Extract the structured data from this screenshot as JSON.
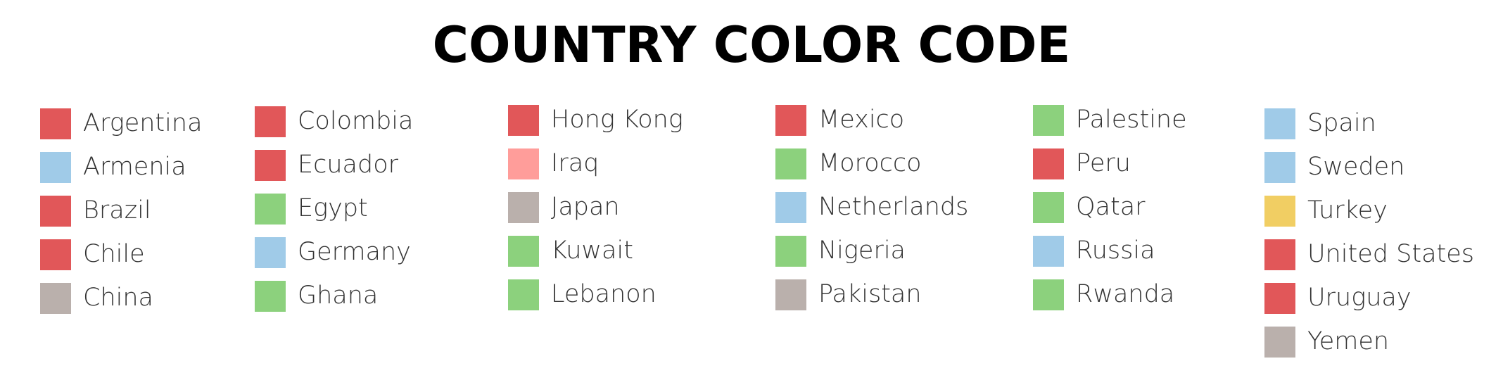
{
  "chart_data": {
    "type": "table",
    "title": "COUNTRY COLOR CODE",
    "colors": {
      "red": "#e15759",
      "blue": "#a0cbe8",
      "green": "#8cd17d",
      "gray": "#bab0ac",
      "pink": "#ff9d9a",
      "yellow": "#f1ce63"
    },
    "columns": [
      [
        {
          "country": "Argentina",
          "color": "#e15759"
        },
        {
          "country": "Armenia",
          "color": "#a0cbe8"
        },
        {
          "country": "Brazil",
          "color": "#e15759"
        },
        {
          "country": "Chile",
          "color": "#e15759"
        },
        {
          "country": "China",
          "color": "#bab0ac"
        }
      ],
      [
        {
          "country": "Colombia",
          "color": "#e15759"
        },
        {
          "country": "Ecuador",
          "color": "#e15759"
        },
        {
          "country": "Egypt",
          "color": "#8cd17d"
        },
        {
          "country": "Germany",
          "color": "#a0cbe8"
        },
        {
          "country": "Ghana",
          "color": "#8cd17d"
        }
      ],
      [
        {
          "country": "Hong Kong",
          "color": "#e15759"
        },
        {
          "country": "Iraq",
          "color": "#ff9d9a"
        },
        {
          "country": "Japan",
          "color": "#bab0ac"
        },
        {
          "country": "Kuwait",
          "color": "#8cd17d"
        },
        {
          "country": "Lebanon",
          "color": "#8cd17d"
        }
      ],
      [
        {
          "country": "Mexico",
          "color": "#e15759"
        },
        {
          "country": "Morocco",
          "color": "#8cd17d"
        },
        {
          "country": "Netherlands",
          "color": "#a0cbe8"
        },
        {
          "country": "Nigeria",
          "color": "#8cd17d"
        },
        {
          "country": "Pakistan",
          "color": "#bab0ac"
        }
      ],
      [
        {
          "country": "Palestine",
          "color": "#8cd17d"
        },
        {
          "country": "Peru",
          "color": "#e15759"
        },
        {
          "country": "Qatar",
          "color": "#8cd17d"
        },
        {
          "country": "Russia",
          "color": "#a0cbe8"
        },
        {
          "country": "Rwanda",
          "color": "#8cd17d"
        }
      ],
      [
        {
          "country": "Spain",
          "color": "#a0cbe8"
        },
        {
          "country": "Sweden",
          "color": "#a0cbe8"
        },
        {
          "country": "Turkey",
          "color": "#f1ce63"
        },
        {
          "country": "United States",
          "color": "#e15759"
        },
        {
          "country": "Uruguay",
          "color": "#e15759"
        },
        {
          "country": "Yemen",
          "color": "#bab0ac"
        }
      ]
    ]
  }
}
